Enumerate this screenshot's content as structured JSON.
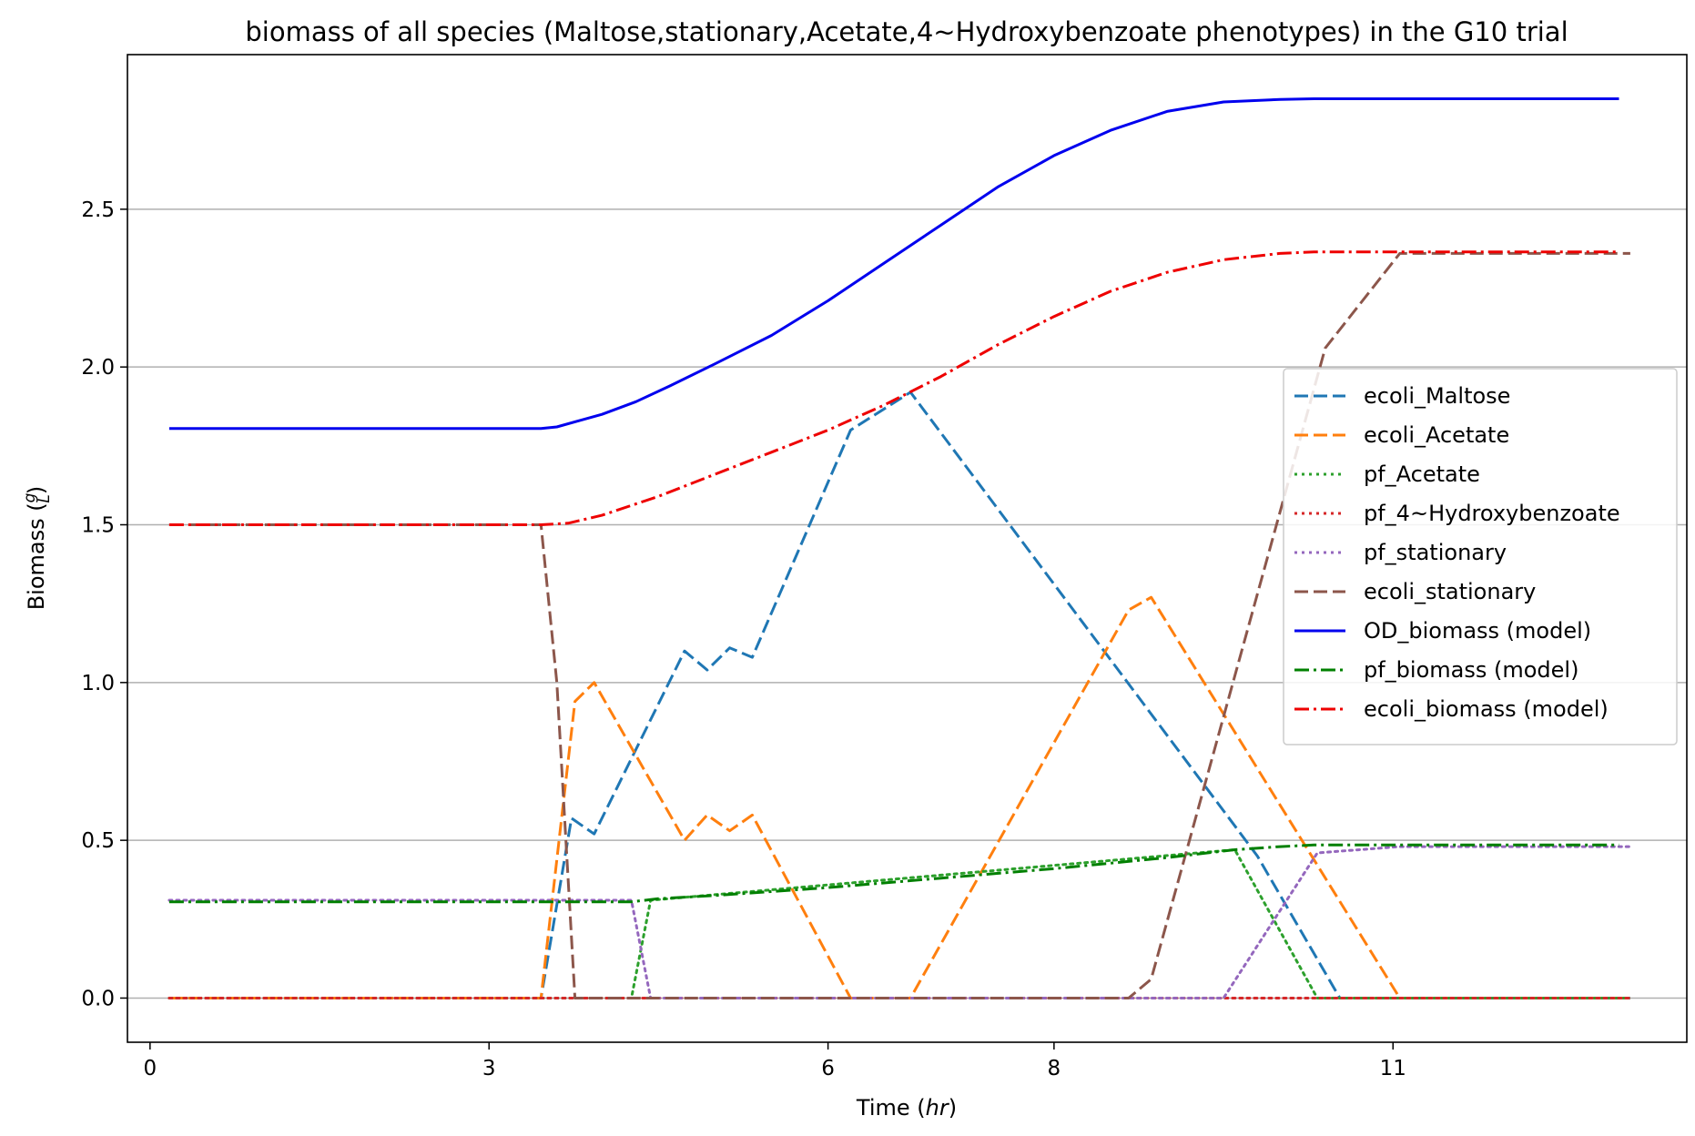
{
  "chart_data": {
    "type": "line",
    "title": "biomass of all species (Maltose,stationary,Acetate,4~Hydroxybenzoate phenotypes) in the G10 trial",
    "xlabel": "Time",
    "xlabel_unit": "hr",
    "ylabel": "Biomass",
    "ylabel_unit_num": "g",
    "ylabel_unit_den": "L",
    "xlim": [
      -0.2,
      13.6
    ],
    "ylim": [
      -0.14,
      2.99
    ],
    "x_ticks": [
      {
        "value": 0,
        "label": "0"
      },
      {
        "value": 3,
        "label": "3"
      },
      {
        "value": 6,
        "label": "6"
      },
      {
        "value": 8,
        "label": "8"
      },
      {
        "value": 11,
        "label": "11"
      }
    ],
    "y_ticks": [
      {
        "value": 0.0,
        "label": "0.0"
      },
      {
        "value": 0.5,
        "label": "0.5"
      },
      {
        "value": 1.0,
        "label": "1.0"
      },
      {
        "value": 1.5,
        "label": "1.5"
      },
      {
        "value": 2.0,
        "label": "2.0"
      },
      {
        "value": 2.5,
        "label": "2.5"
      }
    ],
    "grid": "y-axis",
    "legend_position": "center-right",
    "series": [
      {
        "name": "ecoli_Maltose",
        "color": "#1f77b4",
        "style": "dashed",
        "x": [
          0.17,
          3.46,
          3.73,
          3.93,
          4.73,
          4.93,
          5.13,
          5.33,
          6.2,
          6.73,
          9.8,
          10.53,
          13.1
        ],
        "y": [
          0,
          0,
          0.57,
          0.52,
          1.1,
          1.04,
          1.11,
          1.08,
          1.8,
          1.92,
          0.45,
          0,
          0
        ]
      },
      {
        "name": "ecoli_Acetate",
        "color": "#ff7f0e",
        "style": "dashed",
        "x": [
          0.17,
          3.46,
          3.76,
          3.93,
          4.73,
          4.93,
          5.13,
          5.33,
          6.2,
          6.73,
          8.66,
          8.86,
          11.06,
          13.1
        ],
        "y": [
          0,
          0,
          0.94,
          1.0,
          0.5,
          0.58,
          0.53,
          0.58,
          0,
          0,
          1.23,
          1.27,
          0,
          0
        ]
      },
      {
        "name": "pf_Acetate",
        "color": "#2ca02c",
        "style": "dotted",
        "x": [
          0.17,
          4.26,
          4.43,
          9.6,
          10.33,
          13.1
        ],
        "y": [
          0,
          0,
          0.31,
          0.47,
          0,
          0
        ]
      },
      {
        "name": "pf_4~Hydroxybenzoate",
        "color": "#d62728",
        "style": "dotted",
        "x": [
          0.17,
          13.1
        ],
        "y": [
          0,
          0
        ]
      },
      {
        "name": "pf_stationary",
        "color": "#9467bd",
        "style": "dotted",
        "x": [
          0.17,
          4.26,
          4.43,
          9.5,
          10.33,
          11.06,
          13.1
        ],
        "y": [
          0.31,
          0.31,
          0,
          0,
          0.46,
          0.48,
          0.48
        ]
      },
      {
        "name": "ecoli_stationary",
        "color": "#8c564b",
        "style": "dashed",
        "x": [
          0.17,
          3.46,
          3.6,
          3.76,
          8.66,
          8.86,
          10.4,
          11.06,
          13.1
        ],
        "y": [
          1.5,
          1.5,
          1.0,
          0,
          0,
          0.06,
          2.06,
          2.36,
          2.36
        ]
      },
      {
        "name": "OD_biomass (model)",
        "color": "#0000ee",
        "style": "solid",
        "x": [
          0.17,
          3.46,
          3.6,
          3.8,
          4.0,
          4.3,
          4.6,
          5.0,
          5.5,
          6.0,
          6.5,
          7.0,
          7.5,
          8.0,
          8.5,
          9.0,
          9.5,
          10.0,
          10.3,
          10.6,
          11.0,
          13.0
        ],
        "y": [
          1.805,
          1.805,
          1.81,
          1.83,
          1.85,
          1.89,
          1.94,
          2.01,
          2.1,
          2.21,
          2.33,
          2.45,
          2.57,
          2.67,
          2.75,
          2.81,
          2.84,
          2.848,
          2.85,
          2.85,
          2.85,
          2.85
        ]
      },
      {
        "name": "pf_biomass (model)",
        "color": "#008000",
        "style": "dashdot",
        "x": [
          0.17,
          4.26,
          4.5,
          5.0,
          6.0,
          7.0,
          8.0,
          9.0,
          9.6,
          10.0,
          10.3,
          11.0,
          13.0
        ],
        "y": [
          0.305,
          0.305,
          0.315,
          0.325,
          0.35,
          0.38,
          0.41,
          0.445,
          0.47,
          0.48,
          0.485,
          0.485,
          0.485
        ]
      },
      {
        "name": "ecoli_biomass (model)",
        "color": "#ee0000",
        "style": "dashdot",
        "x": [
          0.17,
          3.46,
          3.7,
          4.0,
          4.5,
          5.0,
          5.5,
          6.0,
          6.5,
          7.0,
          7.5,
          8.0,
          8.5,
          9.0,
          9.5,
          10.0,
          10.3,
          11.0,
          13.0
        ],
        "y": [
          1.5,
          1.5,
          1.505,
          1.53,
          1.59,
          1.66,
          1.73,
          1.8,
          1.88,
          1.97,
          2.07,
          2.16,
          2.24,
          2.3,
          2.34,
          2.36,
          2.365,
          2.365,
          2.365
        ]
      }
    ]
  }
}
